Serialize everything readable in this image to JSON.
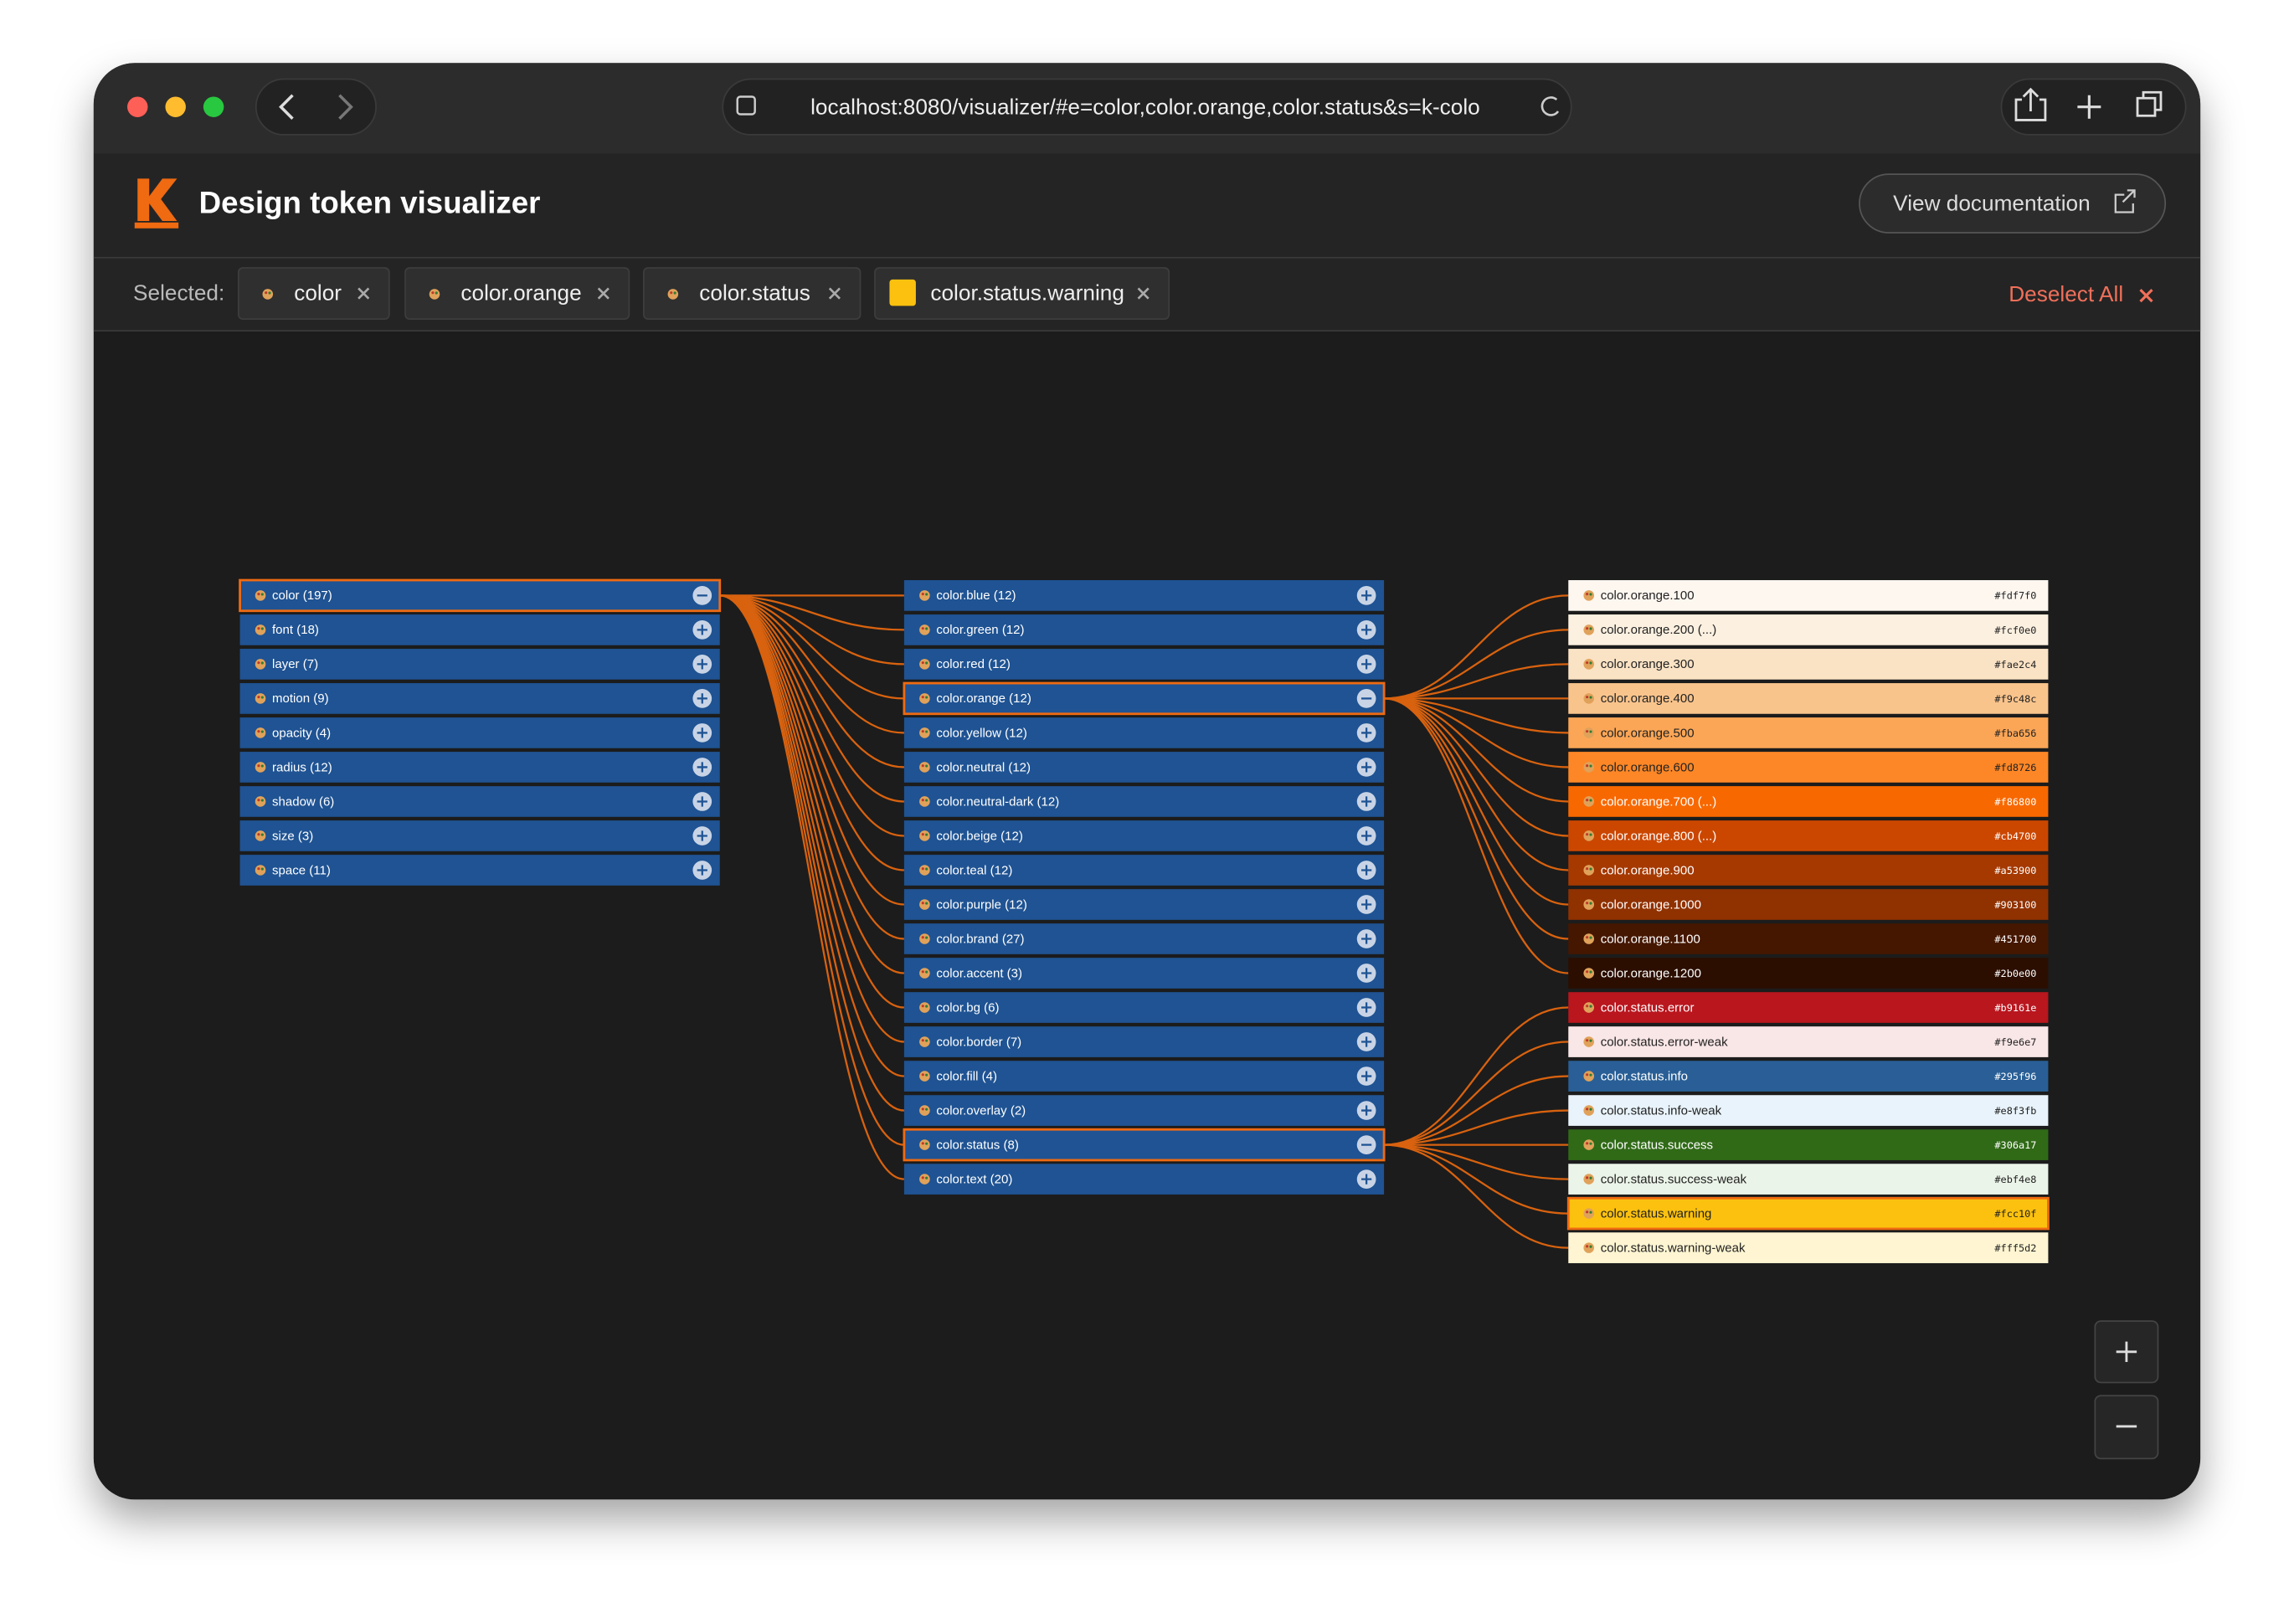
{
  "browser": {
    "url": "localhost:8080/visualizer/#e=color,color.orange,color.status&s=k-colo"
  },
  "header": {
    "title": "Design token visualizer",
    "button": "View documentation"
  },
  "selection": {
    "label": "Selected:",
    "deselect": "Deselect All",
    "chips": [
      {
        "label": "color"
      },
      {
        "label": "color.orange"
      },
      {
        "label": "color.status"
      },
      {
        "label": "color.status.warning",
        "swatch": "#fcc10f"
      }
    ]
  },
  "columns": [
    {
      "nodes": [
        {
          "label": "color (197)",
          "selected": true
        },
        {
          "label": "font (18)"
        },
        {
          "label": "layer (7)"
        },
        {
          "label": "motion (9)"
        },
        {
          "label": "opacity (4)"
        },
        {
          "label": "radius (12)"
        },
        {
          "label": "shadow (6)"
        },
        {
          "label": "size (3)"
        },
        {
          "label": "space (11)"
        }
      ]
    },
    {
      "nodes": [
        {
          "label": "color.blue (12)"
        },
        {
          "label": "color.green (12)"
        },
        {
          "label": "color.red (12)"
        },
        {
          "label": "color.orange (12)",
          "selected": true
        },
        {
          "label": "color.yellow (12)"
        },
        {
          "label": "color.neutral (12)"
        },
        {
          "label": "color.neutral-dark (12)"
        },
        {
          "label": "color.beige (12)"
        },
        {
          "label": "color.teal (12)"
        },
        {
          "label": "color.purple (12)"
        },
        {
          "label": "color.brand (27)"
        },
        {
          "label": "color.accent (3)"
        },
        {
          "label": "color.bg (6)"
        },
        {
          "label": "color.border (7)"
        },
        {
          "label": "color.fill (4)"
        },
        {
          "label": "color.overlay (2)"
        },
        {
          "label": "color.status (8)",
          "selected": true
        },
        {
          "label": "color.text (20)"
        }
      ]
    },
    {
      "groups": [
        {
          "parent": 3,
          "nodes": [
            {
              "label": "color.orange.100",
              "hex": "#fdf7f0"
            },
            {
              "label": "color.orange.200 (...)",
              "hex": "#fcf0e0"
            },
            {
              "label": "color.orange.300",
              "hex": "#fae2c4"
            },
            {
              "label": "color.orange.400",
              "hex": "#f9c48c"
            },
            {
              "label": "color.orange.500",
              "hex": "#fba656"
            },
            {
              "label": "color.orange.600",
              "hex": "#fd8726"
            },
            {
              "label": "color.orange.700 (...)",
              "hex": "#f86800"
            },
            {
              "label": "color.orange.800 (...)",
              "hex": "#cb4700"
            },
            {
              "label": "color.orange.900",
              "hex": "#a53900"
            },
            {
              "label": "color.orange.1000",
              "hex": "#903100"
            },
            {
              "label": "color.orange.1100",
              "hex": "#451700"
            },
            {
              "label": "color.orange.1200",
              "hex": "#2b0e00"
            }
          ]
        },
        {
          "parent": 16,
          "nodes": [
            {
              "label": "color.status.error",
              "hex": "#b9161e"
            },
            {
              "label": "color.status.error-weak",
              "hex": "#f9e6e7"
            },
            {
              "label": "color.status.info",
              "hex": "#295f96"
            },
            {
              "label": "color.status.info-weak",
              "hex": "#e8f3fb"
            },
            {
              "label": "color.status.success",
              "hex": "#306a17"
            },
            {
              "label": "color.status.success-weak",
              "hex": "#ebf4e8"
            },
            {
              "label": "color.status.warning",
              "hex": "#fcc10f",
              "selected": true
            },
            {
              "label": "color.status.warning-weak",
              "hex": "#fff5d2"
            }
          ]
        }
      ]
    }
  ]
}
